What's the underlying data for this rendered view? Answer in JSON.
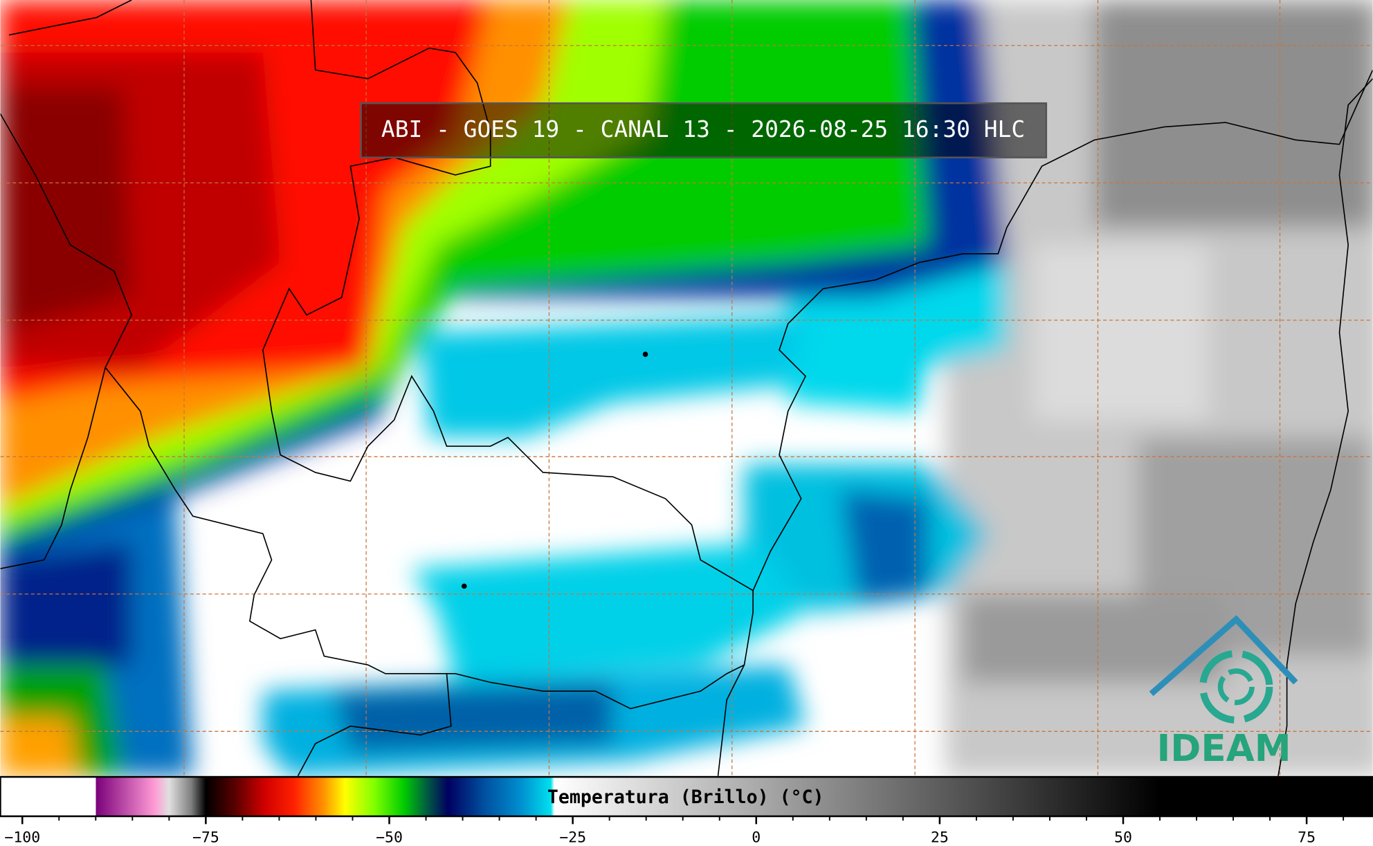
{
  "title": "ABI - GOES 19 - CANAL 13 - 2026-08-25 16:30 HLC",
  "logo": "IDEAM",
  "colorbar": {
    "label": "Temperatura (Brillo) (°C)",
    "range": [
      -103,
      84
    ],
    "ticks": [
      {
        "value": -100,
        "label": "−100"
      },
      {
        "value": -75,
        "label": "−75"
      },
      {
        "value": -50,
        "label": "−50"
      },
      {
        "value": -25,
        "label": "−25"
      },
      0,
      25,
      50,
      75
    ],
    "minor_ticks": [
      -95,
      -90,
      -85,
      -80,
      -70,
      -65,
      -60,
      -55,
      -45,
      -40,
      -35,
      -30,
      -20,
      -15,
      -10,
      -5,
      5,
      10,
      15,
      20,
      30,
      35,
      40,
      45,
      55,
      60,
      65,
      70,
      80
    ],
    "colormap": [
      {
        "value": -103,
        "color": "#ffffff"
      },
      {
        "value": -90,
        "color": "#ffffff"
      },
      {
        "value": -90,
        "color": "#7a007a"
      },
      {
        "value": -82,
        "color": "#ff9ad5"
      },
      {
        "value": -80,
        "color": "#e0e0e0"
      },
      {
        "value": -77,
        "color": "#808080"
      },
      {
        "value": -75,
        "color": "#000000"
      },
      {
        "value": -71,
        "color": "#5a0000"
      },
      {
        "value": -67,
        "color": "#d00000"
      },
      {
        "value": -63,
        "color": "#ff2000"
      },
      {
        "value": -59,
        "color": "#ff9000"
      },
      {
        "value": -56,
        "color": "#ffff00"
      },
      {
        "value": -52,
        "color": "#80ff00"
      },
      {
        "value": -48,
        "color": "#00cc00"
      },
      {
        "value": -45,
        "color": "#006040"
      },
      {
        "value": -42,
        "color": "#000060"
      },
      {
        "value": -37,
        "color": "#0050a0"
      },
      {
        "value": -32,
        "color": "#0090d0"
      },
      {
        "value": -28,
        "color": "#00e0ee"
      },
      {
        "value": -27.5,
        "color": "#ffffff"
      },
      {
        "value": 55,
        "color": "#000000"
      },
      {
        "value": 84,
        "color": "#000000"
      }
    ]
  }
}
